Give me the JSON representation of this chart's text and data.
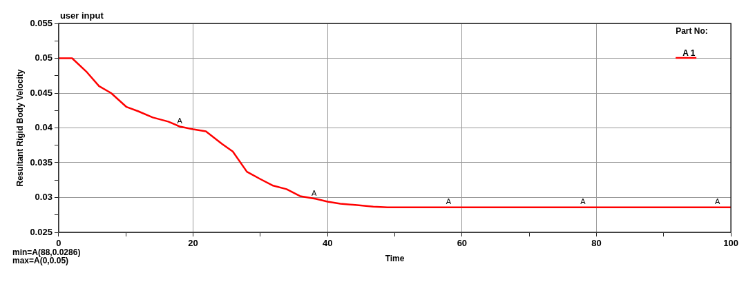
{
  "chart_data": {
    "type": "line",
    "title": "user input",
    "xlabel": "Time",
    "ylabel": "Resultant Rigid Body Velocity",
    "legend_title": "Part No:",
    "legend": "top right",
    "grid": true,
    "marker": "none",
    "line_style": "solid",
    "xlim": [
      0,
      100
    ],
    "ylim": [
      0.025,
      0.055
    ],
    "xticks": [
      0,
      {
        "value": 10,
        "label": null
      },
      20,
      {
        "value": 30,
        "label": null
      },
      40,
      {
        "value": 50,
        "label": null
      },
      60,
      {
        "value": 70,
        "label": null
      },
      80,
      {
        "value": 90,
        "label": null
      },
      100
    ],
    "yticks": [
      0.025,
      {
        "value": 0.0275,
        "label": null
      },
      0.03,
      {
        "value": 0.0325,
        "label": null
      },
      0.035,
      {
        "value": 0.0375,
        "label": null
      },
      0.04,
      {
        "value": 0.0425,
        "label": null
      },
      0.045,
      {
        "value": 0.0475,
        "label": null
      },
      0.05,
      {
        "value": 0.0525,
        "label": null
      },
      0.055
    ],
    "series": [
      {
        "name": "A 1",
        "color": "#ff0000",
        "x": [
          0,
          2,
          4.2,
          6,
          7.8,
          10.1,
          11.8,
          14,
          16.3,
          18,
          20,
          21.9,
          24.3,
          25.9,
          28,
          29.9,
          31.9,
          33.9,
          35.9,
          38.3,
          40,
          41.9,
          44.4,
          46.8,
          48.9,
          53,
          100
        ],
        "values": [
          0.05,
          0.05,
          0.048,
          0.046,
          0.045,
          0.043,
          0.0424,
          0.0415,
          0.0409,
          0.0402,
          0.0398,
          0.0395,
          0.0377,
          0.0366,
          0.0337,
          0.0327,
          0.0317,
          0.0312,
          0.0302,
          0.0298,
          0.0294,
          0.0291,
          0.0289,
          0.0287,
          0.0286,
          0.0286,
          0.0286
        ]
      }
    ],
    "annotations": [
      {
        "text": "A",
        "x": 18,
        "y": 0.0402
      },
      {
        "text": "A",
        "x": 38,
        "y": 0.0298
      },
      {
        "text": "A",
        "x": 58,
        "y": 0.0286
      },
      {
        "text": "A",
        "x": 78,
        "y": 0.0286
      },
      {
        "text": "A",
        "x": 98,
        "y": 0.0286
      },
      "min=A(88,0.0286)",
      "max=A(0,0.05)"
    ]
  }
}
